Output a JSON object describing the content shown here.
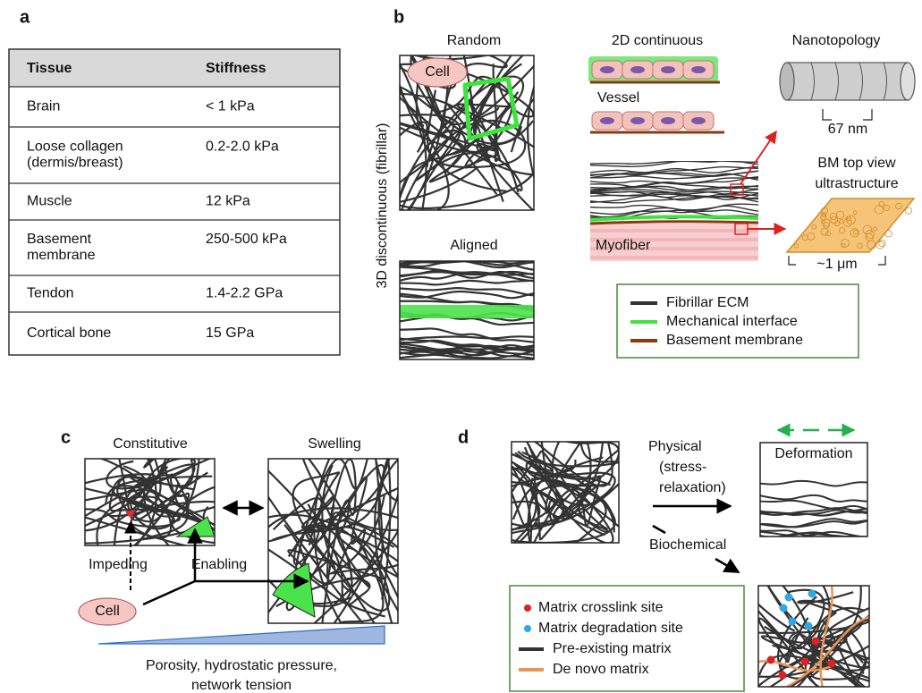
{
  "panel_a": {
    "label": "a",
    "header": {
      "tissue": "Tissue",
      "stiffness": "Stiffness"
    },
    "rows": [
      {
        "tissue": [
          "Brain"
        ],
        "stiffness": "< 1 kPa"
      },
      {
        "tissue": [
          "Loose collagen",
          "(dermis/breast)"
        ],
        "stiffness": "0.2-2.0 kPa"
      },
      {
        "tissue": [
          "Muscle"
        ],
        "stiffness": "12 kPa"
      },
      {
        "tissue": [
          "Basement",
          "membrane"
        ],
        "stiffness": "250-500 kPa"
      },
      {
        "tissue": [
          "Tendon"
        ],
        "stiffness": "1.4-2.2 GPa"
      },
      {
        "tissue": [
          "Cortical bone"
        ],
        "stiffness": "15 GPa"
      }
    ]
  },
  "panel_b": {
    "label": "b",
    "random": "Random",
    "aligned": "Aligned",
    "cell": "Cell",
    "axis_label": "3D discontinuous (fibrillar)",
    "continuous": "2D continuous",
    "vessel": "Vessel",
    "myofiber": "Myofiber",
    "nanotopology": "Nanotopology",
    "period": "67 nm",
    "bm_view": [
      "BM top view",
      "ultrastructure"
    ],
    "bm_scale": "~1 μm",
    "legend": [
      "Fibrillar ECM",
      "Mechanical interface",
      "Basement membrane"
    ]
  },
  "panel_c": {
    "label": "c",
    "constitutive": "Constitutive",
    "swelling": "Swelling",
    "impeding": "Impeding",
    "enabling": "Enabling",
    "cell": "Cell",
    "caption": [
      "Porosity, hydrostatic pressure,",
      "network tension"
    ]
  },
  "panel_d": {
    "label": "d",
    "physical": [
      "Physical",
      "(stress-",
      "relaxation)"
    ],
    "biochemical": "Biochemical",
    "deformation": "Deformation",
    "legend": [
      "Matrix crosslink site",
      "Matrix degradation site",
      "Pre-existing matrix",
      "De novo matrix"
    ]
  }
}
